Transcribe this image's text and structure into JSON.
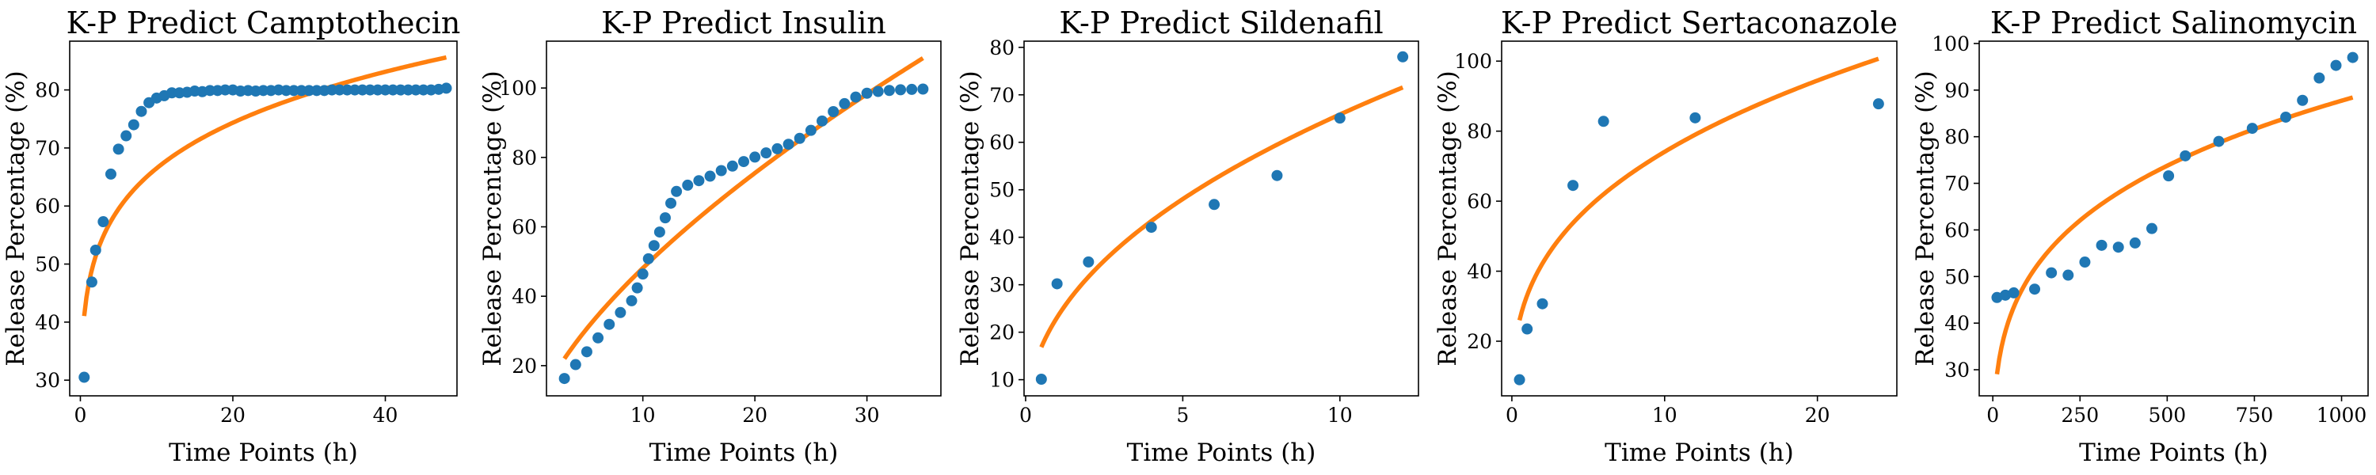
{
  "colors": {
    "points": "#1f77b4",
    "fit": "#ff7f0e"
  },
  "chart_data": [
    {
      "type": "scatter",
      "title": "K-P Predict Camptothecin",
      "xlabel": "Time Points (h)",
      "ylabel": "Release Percentage (%)",
      "xlim": [
        -1.4,
        49.4
      ],
      "ylim": [
        27.3,
        88.4
      ],
      "xticks": [
        0,
        20,
        40
      ],
      "yticks": [
        30,
        40,
        50,
        60,
        70,
        80
      ],
      "series": [
        {
          "kind": "observed",
          "x": [
            0.5,
            1.5,
            2,
            3,
            4,
            5,
            6,
            7,
            8,
            9,
            10,
            11,
            12,
            13,
            14,
            15,
            16,
            17,
            18,
            19,
            20,
            21,
            22,
            23,
            24,
            25,
            26,
            27,
            28,
            29,
            30,
            31,
            32,
            33,
            34,
            35,
            36,
            37,
            38,
            39,
            40,
            41,
            42,
            43,
            44,
            45,
            46,
            47,
            48
          ],
          "y": [
            30.5,
            46.9,
            52.4,
            57.3,
            65.5,
            69.8,
            72.1,
            74.0,
            76.3,
            77.8,
            78.6,
            79.0,
            79.5,
            79.5,
            79.6,
            79.8,
            79.7,
            79.9,
            79.9,
            80.0,
            80.0,
            79.8,
            79.9,
            79.8,
            79.9,
            79.9,
            80.0,
            79.9,
            79.9,
            79.9,
            79.9,
            79.9,
            79.9,
            80.0,
            80.0,
            80.0,
            80.0,
            80.0,
            80.0,
            80.0,
            80.0,
            80.0,
            80.0,
            80.0,
            80.0,
            80.0,
            80.0,
            80.1,
            80.3
          ]
        },
        {
          "kind": "fit",
          "model": "power",
          "k": 45.9,
          "n": 0.161,
          "x_start": 0.5,
          "x_end": 48
        }
      ]
    },
    {
      "type": "scatter",
      "title": "K-P Predict Insulin",
      "xlabel": "Time Points (h)",
      "ylabel": "Release Percentage (%)",
      "xlim": [
        1.4,
        36.6
      ],
      "ylim": [
        11.3,
        113.5
      ],
      "xticks": [
        10,
        20,
        30
      ],
      "yticks": [
        20,
        40,
        60,
        80,
        100
      ],
      "series": [
        {
          "kind": "observed",
          "x": [
            3,
            4,
            5,
            6,
            7,
            8,
            9,
            9.5,
            10,
            10.5,
            11,
            11.5,
            12,
            12.5,
            13,
            14,
            15,
            16,
            17,
            18,
            19,
            20,
            21,
            22,
            23,
            24,
            25,
            26,
            27,
            28,
            29,
            30,
            31,
            32,
            33,
            34,
            35
          ],
          "y": [
            16.3,
            20.3,
            24.0,
            28.0,
            31.9,
            35.3,
            38.7,
            42.4,
            46.4,
            50.8,
            54.6,
            58.5,
            62.6,
            66.8,
            70.2,
            72.0,
            73.3,
            74.6,
            76.2,
            77.5,
            78.8,
            80.1,
            81.3,
            82.5,
            83.8,
            85.5,
            87.8,
            90.5,
            93.2,
            95.5,
            97.4,
            98.5,
            99.0,
            99.3,
            99.5,
            99.6,
            99.7
          ]
        },
        {
          "kind": "fit",
          "model": "power",
          "k": 10.77,
          "n": 0.65,
          "x_start": 3,
          "x_end": 35
        }
      ]
    },
    {
      "type": "scatter",
      "title": "K-P Predict Sildenafil",
      "xlabel": "Time Points (h)",
      "ylabel": "Release Percentage (%)",
      "xlim": [
        -0.05,
        12.5
      ],
      "ylim": [
        6.6,
        81.3
      ],
      "xticks": [
        0,
        5,
        10
      ],
      "yticks": [
        10,
        20,
        30,
        40,
        50,
        60,
        70,
        80
      ],
      "series": [
        {
          "kind": "observed",
          "x": [
            0.5,
            1,
            2,
            4,
            6,
            8,
            10,
            12
          ],
          "y": [
            10.1,
            30.2,
            34.8,
            42.1,
            46.9,
            53.0,
            65.1,
            78.0
          ]
        },
        {
          "kind": "fit",
          "model": "power",
          "k": 23.1,
          "n": 0.455,
          "x_start": 0.5,
          "x_end": 12
        }
      ]
    },
    {
      "type": "scatter",
      "title": "K-P Predict Sertaconazole",
      "xlabel": "Time Points (h)",
      "ylabel": "Release Percentage (%)",
      "xlim": [
        -0.67,
        25.2
      ],
      "ylim": [
        4.4,
        105.7
      ],
      "xticks": [
        0,
        10,
        20
      ],
      "yticks": [
        20,
        40,
        60,
        80,
        100
      ],
      "series": [
        {
          "kind": "observed",
          "x": [
            0.5,
            1,
            2,
            4,
            6,
            12,
            24
          ],
          "y": [
            9.0,
            23.5,
            30.7,
            64.5,
            82.8,
            83.8,
            87.8
          ]
        },
        {
          "kind": "fit",
          "model": "power",
          "k": 33.1,
          "n": 0.35,
          "x_start": 0.5,
          "x_end": 24
        }
      ]
    },
    {
      "type": "scatter",
      "title": "K-P Predict Salinomycin",
      "xlabel": "Time Points (h)",
      "ylabel": "Release Percentage (%)",
      "xlim": [
        -39,
        1076
      ],
      "ylim": [
        24.4,
        100.5
      ],
      "xticks": [
        0,
        250,
        500,
        750,
        1000
      ],
      "yticks": [
        30,
        40,
        50,
        60,
        70,
        80,
        90,
        100
      ],
      "series": [
        {
          "kind": "observed",
          "x": [
            12,
            36,
            60,
            120,
            168,
            216,
            264,
            312,
            360,
            408,
            456,
            504,
            552,
            648,
            744,
            840,
            888,
            936,
            984,
            1032
          ],
          "y": [
            45.5,
            46.0,
            46.5,
            47.3,
            50.8,
            50.3,
            53.1,
            56.7,
            56.3,
            57.2,
            60.3,
            71.6,
            75.9,
            79.0,
            81.8,
            84.2,
            87.8,
            92.6,
            95.3,
            97.0
          ]
        },
        {
          "kind": "fit",
          "model": "power",
          "k": 15.6,
          "n": 0.25,
          "x_start": 12,
          "x_end": 1032
        }
      ]
    }
  ]
}
